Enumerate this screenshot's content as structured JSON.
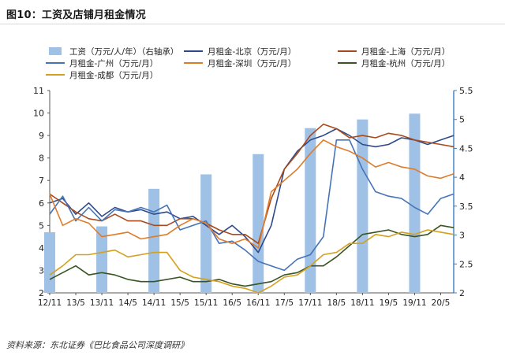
{
  "title": "图10：工资及店铺月租金情况",
  "source": "资料来源：东北证券《巴比食品公司深度调研》",
  "colors": {
    "wage": "#9fc1e6",
    "beijing": "#2e4a8c",
    "shanghai": "#a94a1c",
    "guangzhou": "#4673b8",
    "shenzhen": "#e07b28",
    "hangzhou": "#3a5422",
    "chengdu": "#d4a11e",
    "axis_right": "#3a7fc1"
  },
  "chart_data": {
    "type": "bar+line",
    "legend_position": "top",
    "x_ticks": [
      "12/11",
      "13/5",
      "13/11",
      "14/5",
      "14/11",
      "15/5",
      "15/11",
      "16/5",
      "16/11",
      "17/5",
      "17/11",
      "18/5",
      "18/11",
      "19/5",
      "19/11",
      "20/5"
    ],
    "x_range": [
      0,
      31
    ],
    "y_left": {
      "range": [
        2,
        11
      ],
      "ticks": [
        "2",
        "3",
        "4",
        "5",
        "6",
        "7",
        "8",
        "9",
        "10",
        "11"
      ]
    },
    "y_right": {
      "range": [
        2,
        5.5
      ],
      "ticks": [
        "2",
        "2.5",
        "3",
        "3.5",
        "4",
        "4.5",
        "5",
        "5.5"
      ]
    },
    "bar_series": {
      "name": "工资（万元/人/年）（右轴承）",
      "color_key": "wage",
      "x": [
        0,
        4,
        8,
        12,
        16,
        20,
        24,
        28
      ],
      "values": [
        3.05,
        3.15,
        3.8,
        4.05,
        4.4,
        4.85,
        5.0,
        5.1
      ]
    },
    "line_series": [
      {
        "name": "月租金-北京（万元/月）",
        "color_key": "beijing",
        "x": [
          0,
          1,
          2,
          3,
          4,
          5,
          6,
          7,
          8,
          9,
          10,
          11,
          12,
          13,
          14,
          15,
          16,
          17,
          18,
          19,
          20,
          21,
          22,
          23,
          24,
          25,
          26,
          27,
          28,
          29,
          30,
          31
        ],
        "values": [
          6.0,
          6.2,
          5.5,
          6.0,
          5.4,
          5.8,
          5.6,
          5.7,
          5.5,
          5.6,
          5.3,
          5.4,
          5.0,
          4.6,
          5.0,
          4.5,
          3.8,
          5.0,
          7.5,
          8.3,
          8.8,
          9.0,
          9.3,
          9.0,
          8.6,
          8.5,
          8.6,
          8.9,
          8.8,
          8.6,
          8.8,
          9.0
        ]
      },
      {
        "name": "月租金-上海（万元/月）",
        "color_key": "shanghai",
        "x": [
          0,
          1,
          2,
          3,
          4,
          5,
          6,
          7,
          8,
          9,
          10,
          11,
          12,
          13,
          14,
          15,
          16,
          17,
          18,
          19,
          20,
          21,
          22,
          23,
          24,
          25,
          26,
          27,
          28,
          29,
          30,
          31
        ],
        "values": [
          6.4,
          6.0,
          5.6,
          5.3,
          5.2,
          5.5,
          5.2,
          5.2,
          5.0,
          5.0,
          5.3,
          5.3,
          5.1,
          4.8,
          4.6,
          4.6,
          4.2,
          6.2,
          7.5,
          8.2,
          9.0,
          9.5,
          9.3,
          8.9,
          9.0,
          8.9,
          9.1,
          9.0,
          8.8,
          8.7,
          8.6,
          8.5
        ]
      },
      {
        "name": "月租金-广州（万元/月）",
        "color_key": "guangzhou",
        "x": [
          0,
          1,
          2,
          3,
          4,
          5,
          6,
          7,
          8,
          9,
          10,
          11,
          12,
          13,
          14,
          15,
          16,
          17,
          18,
          19,
          20,
          21,
          22,
          23,
          24,
          25,
          26,
          27,
          28,
          29,
          30,
          31
        ],
        "values": [
          5.5,
          6.3,
          5.2,
          5.8,
          5.2,
          5.7,
          5.6,
          5.8,
          5.6,
          5.9,
          4.8,
          5.0,
          5.2,
          4.2,
          4.3,
          3.9,
          3.4,
          3.2,
          3.0,
          3.5,
          3.7,
          4.5,
          8.8,
          8.8,
          7.5,
          6.5,
          6.3,
          6.2,
          5.8,
          5.5,
          6.2,
          6.4
        ]
      },
      {
        "name": "月租金-深圳（万元/月）",
        "color_key": "shenzhen",
        "x": [
          0,
          1,
          2,
          3,
          4,
          5,
          6,
          7,
          8,
          9,
          10,
          11,
          12,
          13,
          14,
          15,
          16,
          17,
          18,
          19,
          20,
          21,
          22,
          23,
          24,
          25,
          26,
          27,
          28,
          29,
          30,
          31
        ],
        "values": [
          6.4,
          5.0,
          5.3,
          5.1,
          4.5,
          4.6,
          4.7,
          4.4,
          4.5,
          4.6,
          5.0,
          5.3,
          5.1,
          4.4,
          4.2,
          4.4,
          4.0,
          6.5,
          7.0,
          7.5,
          8.2,
          8.8,
          8.5,
          8.3,
          8.0,
          7.6,
          7.8,
          7.6,
          7.5,
          7.2,
          7.1,
          7.3
        ]
      },
      {
        "name": "月租金-杭州（万元/月）",
        "color_key": "hangzhou",
        "x": [
          0,
          1,
          2,
          3,
          4,
          5,
          6,
          7,
          8,
          9,
          10,
          11,
          12,
          13,
          14,
          15,
          16,
          17,
          18,
          19,
          20,
          21,
          22,
          23,
          24,
          25,
          26,
          27,
          28,
          29,
          30,
          31
        ],
        "values": [
          2.6,
          2.9,
          3.2,
          2.8,
          2.9,
          2.8,
          2.6,
          2.5,
          2.5,
          2.6,
          2.7,
          2.5,
          2.5,
          2.6,
          2.4,
          2.3,
          2.4,
          2.5,
          2.8,
          2.9,
          3.2,
          3.2,
          3.6,
          4.1,
          4.6,
          4.7,
          4.8,
          4.6,
          4.5,
          4.6,
          5.0,
          4.9
        ]
      },
      {
        "name": "月租金-成都（万元/月）",
        "color_key": "chengdu",
        "x": [
          0,
          1,
          2,
          3,
          4,
          5,
          6,
          7,
          8,
          9,
          10,
          11,
          12,
          13,
          14,
          15,
          16,
          17,
          18,
          19,
          20,
          21,
          22,
          23,
          24,
          25,
          26,
          27,
          28,
          29,
          30,
          31
        ],
        "values": [
          2.8,
          3.2,
          3.7,
          3.7,
          3.8,
          3.9,
          3.6,
          3.7,
          3.8,
          3.8,
          3.0,
          2.7,
          2.6,
          2.5,
          2.3,
          2.2,
          2.0,
          2.3,
          2.7,
          2.8,
          3.2,
          3.7,
          3.8,
          4.2,
          4.2,
          4.6,
          4.5,
          4.7,
          4.6,
          4.8,
          4.7,
          4.6
        ]
      }
    ]
  }
}
